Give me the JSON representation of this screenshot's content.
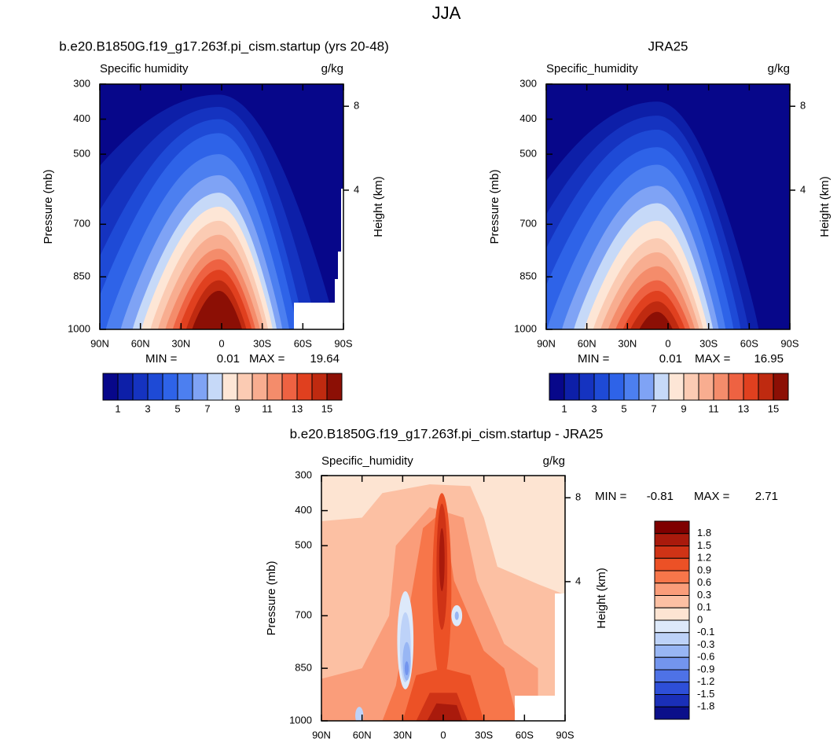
{
  "title": "JJA",
  "chart_data": [
    {
      "type": "contour",
      "title": "b.e20.B1850G.f19_g17.263f.pi_cism.startup (yrs 20-48)",
      "subtitle": "Specific humidity",
      "units": "g/kg",
      "ylabel": "Pressure (mb)",
      "y2label": "Height (km)",
      "xlim": [
        90,
        -90
      ],
      "xticks": [
        {
          "value": 90,
          "label": "90N"
        },
        {
          "value": 60,
          "label": "60N"
        },
        {
          "value": 30,
          "label": "30N"
        },
        0,
        {
          "value": -30,
          "label": "30S"
        },
        {
          "value": -60,
          "label": "60S"
        },
        {
          "value": -90,
          "label": "90S"
        }
      ],
      "ylim": [
        1000,
        300
      ],
      "yticks": [
        300,
        400,
        500,
        700,
        850,
        1000
      ],
      "y2ticks": [
        8,
        4
      ],
      "min_label": "MIN =",
      "min": 0.01,
      "max_label": "MAX =",
      "max": 19.64,
      "colorbar": {
        "colors": [
          "#07078a",
          "#0d1fa8",
          "#1533c0",
          "#1e4ad6",
          "#2e63e8",
          "#4c7ff0",
          "#7fa3f5",
          "#c6d9f8",
          "#fde6d6",
          "#fbcbb3",
          "#f8ad90",
          "#f48c6b",
          "#ee6242",
          "#e0401f",
          "#bf2a10",
          "#8c0f05"
        ],
        "labels": [
          1,
          3,
          5,
          7,
          9,
          11,
          13,
          15
        ]
      }
    },
    {
      "type": "contour",
      "title": "JRA25",
      "subtitle": "Specific_humidity",
      "units": "g/kg",
      "ylabel": "Pressure (mb)",
      "y2label": "Height (km)",
      "xlim": [
        90,
        -90
      ],
      "xticks": [
        {
          "value": 90,
          "label": "90N"
        },
        {
          "value": 60,
          "label": "60N"
        },
        {
          "value": 30,
          "label": "30N"
        },
        0,
        {
          "value": -30,
          "label": "30S"
        },
        {
          "value": -60,
          "label": "60S"
        },
        {
          "value": -90,
          "label": "90S"
        }
      ],
      "ylim": [
        1000,
        300
      ],
      "yticks": [
        300,
        400,
        500,
        700,
        850,
        1000
      ],
      "y2ticks": [
        8,
        4
      ],
      "min_label": "MIN =",
      "min": 0.01,
      "max_label": "MAX =",
      "max": 16.95,
      "colorbar": {
        "colors": [
          "#07078a",
          "#0d1fa8",
          "#1533c0",
          "#1e4ad6",
          "#2e63e8",
          "#4c7ff0",
          "#7fa3f5",
          "#c6d9f8",
          "#fde6d6",
          "#fbcbb3",
          "#f8ad90",
          "#f48c6b",
          "#ee6242",
          "#e0401f",
          "#bf2a10",
          "#8c0f05"
        ],
        "labels": [
          1,
          3,
          5,
          7,
          9,
          11,
          13,
          15
        ]
      }
    },
    {
      "type": "difference",
      "title": "b.e20.B1850G.f19_g17.263f.pi_cism.startup - JRA25",
      "subtitle": "Specific_humidity",
      "units": "g/kg",
      "ylabel": "Pressure (mb)",
      "y2label": "Height (km)",
      "xlim": [
        90,
        -90
      ],
      "xticks": [
        {
          "value": 90,
          "label": "90N"
        },
        {
          "value": 60,
          "label": "60N"
        },
        {
          "value": 30,
          "label": "30N"
        },
        0,
        {
          "value": -30,
          "label": "30S"
        },
        {
          "value": -60,
          "label": "60S"
        },
        {
          "value": -90,
          "label": "90S"
        }
      ],
      "ylim": [
        1000,
        300
      ],
      "yticks": [
        300,
        400,
        500,
        700,
        850,
        1000
      ],
      "y2ticks": [
        8,
        4
      ],
      "min_label": "MIN =",
      "min": -0.81,
      "max_label": "MAX =",
      "max": 2.71,
      "colorbar": {
        "colors": [
          "#7f0000",
          "#a91a0c",
          "#cf3316",
          "#ec5126",
          "#f7764a",
          "#fa9d7a",
          "#fcc0a3",
          "#fde4d2",
          "#dde9fa",
          "#bdd2f8",
          "#98b6f4",
          "#7395ee",
          "#4e72e6",
          "#2e4fd8",
          "#1a2fb8",
          "#0b0f8a"
        ],
        "labels": [
          1.8,
          1.5,
          1.2,
          0.9,
          0.6,
          0.3,
          0.1,
          0,
          -0.1,
          -0.3,
          -0.6,
          -0.9,
          -1.2,
          -1.5,
          -1.8
        ]
      }
    }
  ]
}
